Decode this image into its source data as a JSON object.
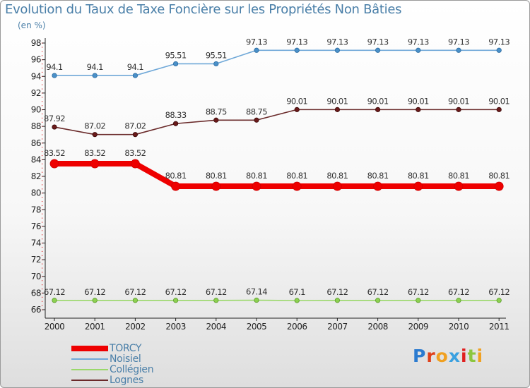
{
  "title": "Evolution du Taux de Taxe Foncière sur les Propriétés Non Bâties",
  "subtitle": "(en %)",
  "logo": {
    "text": "Proxiti",
    "letter_colors": [
      "#2b7bd0",
      "#e0401a",
      "#f0a020",
      "#3aa0e0",
      "#e02020",
      "#8cc63f",
      "#f0a020"
    ]
  },
  "legend_entries": [
    {
      "label": "TORCY",
      "color": "#ee0000"
    },
    {
      "label": "Noisiel",
      "color": "#6fa8d8"
    },
    {
      "label": "Collégien",
      "color": "#9ad86a"
    },
    {
      "label": "Lognes",
      "color": "#6a2a2a"
    }
  ],
  "chart_data": {
    "type": "line",
    "title": "Evolution du Taux de Taxe Foncière sur les Propriétés Non Bâties",
    "ylabel": "(en %)",
    "xlabel": "",
    "categories": [
      "2000",
      "2001",
      "2002",
      "2003",
      "2004",
      "2005",
      "2006",
      "2007",
      "2008",
      "2009",
      "2010",
      "2011"
    ],
    "ylim": [
      66,
      98
    ],
    "ytick_step": 2,
    "grid": false,
    "legend_position": "bottom-left",
    "series": [
      {
        "name": "TORCY",
        "color": "#ee0000",
        "marker_fill": "#ee0000",
        "marker_stroke": "#cc0000",
        "values": [
          83.52,
          83.52,
          83.52,
          80.81,
          80.81,
          80.81,
          80.81,
          80.81,
          80.81,
          80.81,
          80.81,
          80.81
        ],
        "labels": [
          "83.52",
          "83.52",
          "83.52",
          "80.81",
          "80.81",
          "80.81",
          "80.81",
          "80.81",
          "80.81",
          "80.81",
          "80.81",
          "80.81"
        ]
      },
      {
        "name": "Noisiel",
        "color": "#6fa8d8",
        "marker_fill": "#4a90c8",
        "marker_stroke": "#2a6aa0",
        "values": [
          94.1,
          94.1,
          94.1,
          95.51,
          95.51,
          97.13,
          97.13,
          97.13,
          97.13,
          97.13,
          97.13,
          97.13
        ],
        "labels": [
          "94.1",
          "94.1",
          "94.1",
          "95.51",
          "95.51",
          "97.13",
          "97.13",
          "97.13",
          "97.13",
          "97.13",
          "97.13",
          "97.13"
        ]
      },
      {
        "name": "Collégien",
        "color": "#9ad86a",
        "marker_fill": "#8cd050",
        "marker_stroke": "#5a9a2a",
        "values": [
          67.12,
          67.12,
          67.12,
          67.12,
          67.12,
          67.14,
          67.1,
          67.12,
          67.12,
          67.12,
          67.12,
          67.12
        ],
        "labels": [
          "67.12",
          "67.12",
          "67.12",
          "67.12",
          "67.12",
          "67.14",
          "67.1",
          "67.12",
          "67.12",
          "67.12",
          "67.12",
          "67.12"
        ]
      },
      {
        "name": "Lognes",
        "color": "#6a2a2a",
        "marker_fill": "#6a1a1a",
        "marker_stroke": "#3a0a0a",
        "values": [
          87.92,
          87.02,
          87.02,
          88.33,
          88.75,
          88.75,
          90.01,
          90.01,
          90.01,
          90.01,
          90.01,
          90.01
        ],
        "labels": [
          "87.92",
          "87.02",
          "87.02",
          "88.33",
          "88.75",
          "88.75",
          "90.01",
          "90.01",
          "90.01",
          "90.01",
          "90.01",
          "90.01"
        ]
      }
    ]
  }
}
